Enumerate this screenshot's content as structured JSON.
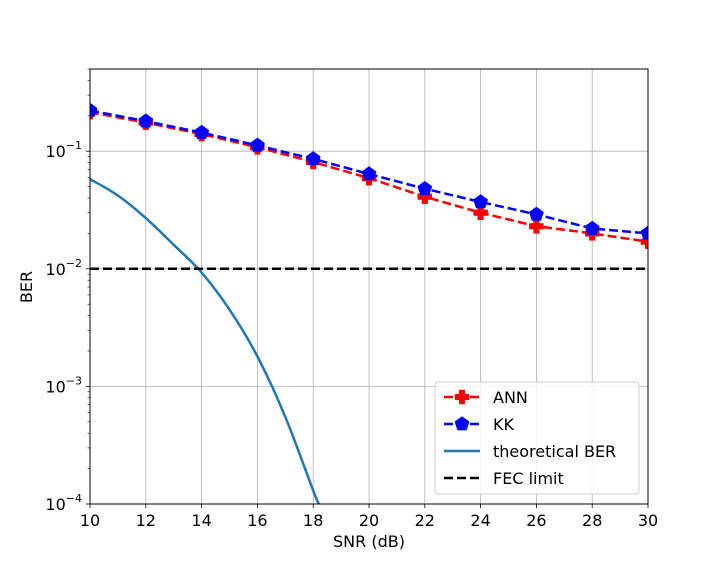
{
  "chart_data": {
    "type": "line",
    "title": "",
    "xlabel": "SNR (dB)",
    "ylabel": "BER",
    "xlim": [
      10,
      30
    ],
    "ylim": [
      0.0001,
      0.5
    ],
    "yscale": "log",
    "grid": true,
    "legend_position": "lower-right",
    "x_ticks": [
      10,
      12,
      14,
      16,
      18,
      20,
      22,
      24,
      26,
      28,
      30
    ],
    "y_ticks": [
      {
        "value": 0.1,
        "base": "10",
        "exp": "−1"
      },
      {
        "value": 0.01,
        "base": "10",
        "exp": "−2"
      },
      {
        "value": 0.001,
        "base": "10",
        "exp": "−3"
      },
      {
        "value": 0.0001,
        "base": "10",
        "exp": "−4"
      }
    ],
    "series": [
      {
        "name": "ANN",
        "color": "#ff0000",
        "style": "dashed",
        "marker": "plus",
        "x": [
          10,
          12,
          14,
          16,
          18,
          20,
          22,
          24,
          26,
          28,
          30
        ],
        "y": [
          0.215,
          0.175,
          0.14,
          0.108,
          0.081,
          0.059,
          0.041,
          0.03,
          0.023,
          0.02,
          0.017
        ]
      },
      {
        "name": "KK",
        "color": "#0000ff",
        "style": "dashed",
        "marker": "pentagon",
        "x": [
          10,
          12,
          14,
          16,
          18,
          20,
          22,
          24,
          26,
          28,
          30
        ],
        "y": [
          0.222,
          0.18,
          0.144,
          0.112,
          0.086,
          0.064,
          0.048,
          0.037,
          0.029,
          0.022,
          0.02
        ]
      },
      {
        "name": "theoretical BER",
        "color": "#1f77b4",
        "style": "solid",
        "marker": "none",
        "x": [
          10,
          11,
          12,
          13,
          14,
          15,
          16,
          17,
          18,
          18.2
        ],
        "y": [
          0.058,
          0.042,
          0.027,
          0.016,
          0.0093,
          0.0045,
          0.0018,
          0.00055,
          0.00013,
          0.0001
        ]
      },
      {
        "name": "FEC limit",
        "color": "#000000",
        "style": "dashed",
        "marker": "none",
        "x": [
          10,
          30
        ],
        "y": [
          0.01,
          0.01
        ]
      }
    ]
  }
}
